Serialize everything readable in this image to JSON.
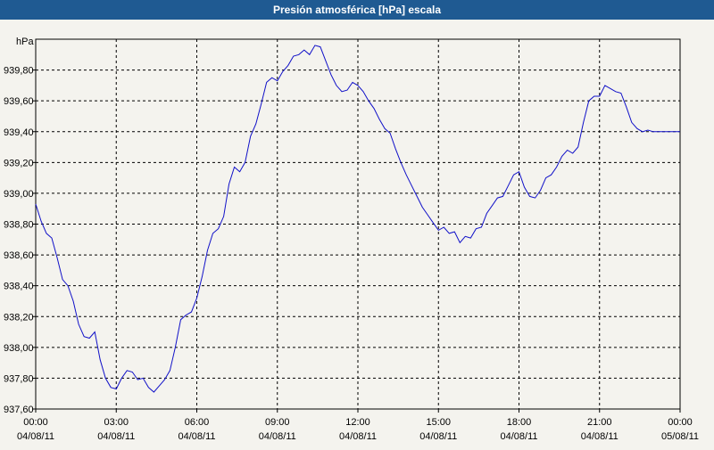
{
  "window": {
    "title": "Presión atmosférica [hPa] escala"
  },
  "chart_data": {
    "type": "line",
    "title": "Presión atmosférica [hPa] escala",
    "ylabel": "hPa",
    "xlabel": "",
    "ylim": [
      937.6,
      940.0
    ],
    "xlim": [
      0,
      24
    ],
    "grid": true,
    "line_color": "#1010c8",
    "y_ticks": [
      {
        "value": 937.6,
        "label": "937,60"
      },
      {
        "value": 937.8,
        "label": "937,80"
      },
      {
        "value": 938.0,
        "label": "938,00"
      },
      {
        "value": 938.2,
        "label": "938,20"
      },
      {
        "value": 938.4,
        "label": "938,40"
      },
      {
        "value": 938.6,
        "label": "938,60"
      },
      {
        "value": 938.8,
        "label": "938,80"
      },
      {
        "value": 939.0,
        "label": "939,00"
      },
      {
        "value": 939.2,
        "label": "939,20"
      },
      {
        "value": 939.4,
        "label": "939,40"
      },
      {
        "value": 939.6,
        "label": "939,60"
      },
      {
        "value": 939.8,
        "label": "939,80"
      }
    ],
    "x_ticks": [
      {
        "value": 0,
        "time": "00:00",
        "date": "04/08/11"
      },
      {
        "value": 3,
        "time": "03:00",
        "date": "04/08/11"
      },
      {
        "value": 6,
        "time": "06:00",
        "date": "04/08/11"
      },
      {
        "value": 9,
        "time": "09:00",
        "date": "04/08/11"
      },
      {
        "value": 12,
        "time": "12:00",
        "date": "04/08/11"
      },
      {
        "value": 15,
        "time": "15:00",
        "date": "04/08/11"
      },
      {
        "value": 18,
        "time": "18:00",
        "date": "04/08/11"
      },
      {
        "value": 21,
        "time": "21:00",
        "date": "04/08/11"
      },
      {
        "value": 24,
        "time": "00:00",
        "date": "05/08/11"
      }
    ],
    "series": [
      {
        "x": [
          0,
          0.2,
          0.4,
          0.6,
          0.8,
          1.0,
          1.2,
          1.4,
          1.6,
          1.8,
          2.0,
          2.2,
          2.4,
          2.6,
          2.8,
          3.0,
          3.2,
          3.4,
          3.6,
          3.8,
          4.0,
          4.2,
          4.4,
          4.6,
          4.8,
          5.0,
          5.2,
          5.4,
          5.6,
          5.8,
          6.0,
          6.2,
          6.4,
          6.6,
          6.8,
          7.0,
          7.2,
          7.4,
          7.6,
          7.8,
          8.0,
          8.2,
          8.4,
          8.6,
          8.8,
          9.0,
          9.2,
          9.4,
          9.6,
          9.8,
          10.0,
          10.2,
          10.4,
          10.6,
          10.8,
          11.0,
          11.2,
          11.4,
          11.6,
          11.8,
          12.0,
          12.2,
          12.4,
          12.6,
          12.8,
          13.0,
          13.2,
          13.4,
          13.6,
          13.8,
          14.0,
          14.2,
          14.4,
          14.6,
          14.8,
          15.0,
          15.2,
          15.4,
          15.6,
          15.8,
          16.0,
          16.2,
          16.4,
          16.6,
          16.8,
          17.0,
          17.2,
          17.4,
          17.6,
          17.8,
          18.0,
          18.2,
          18.4,
          18.6,
          18.8,
          19.0,
          19.2,
          19.4,
          19.6,
          19.8,
          20.0,
          20.2,
          20.4,
          20.6,
          20.8,
          21.0,
          21.2,
          21.4,
          21.6,
          21.8,
          22.0,
          22.2,
          22.4,
          22.6,
          22.8,
          23.0,
          23.2,
          23.4,
          23.6,
          23.8,
          24.0
        ],
        "values": [
          938.93,
          938.82,
          938.74,
          938.71,
          938.58,
          938.44,
          938.4,
          938.3,
          938.15,
          938.07,
          938.06,
          938.1,
          937.92,
          937.8,
          937.74,
          937.73,
          937.8,
          937.85,
          937.84,
          937.79,
          937.8,
          937.74,
          937.71,
          937.75,
          937.79,
          937.85,
          938.0,
          938.18,
          938.21,
          938.23,
          938.32,
          938.46,
          938.63,
          938.74,
          938.77,
          938.85,
          939.06,
          939.17,
          939.14,
          939.2,
          939.37,
          939.45,
          939.58,
          939.72,
          939.75,
          939.73,
          939.79,
          939.83,
          939.89,
          939.9,
          939.93,
          939.9,
          939.96,
          939.95,
          939.86,
          939.77,
          939.7,
          939.66,
          939.67,
          939.72,
          939.7,
          939.66,
          939.6,
          939.55,
          939.48,
          939.42,
          939.39,
          939.29,
          939.2,
          939.12,
          939.05,
          938.98,
          938.91,
          938.86,
          938.81,
          938.76,
          938.78,
          938.74,
          938.75,
          938.68,
          938.72,
          938.71,
          938.77,
          938.78,
          938.87,
          938.92,
          938.97,
          938.98,
          939.05,
          939.12,
          939.14,
          939.04,
          938.98,
          938.97,
          939.02,
          939.1,
          939.12,
          939.17,
          939.24,
          939.28,
          939.26,
          939.3,
          939.46,
          939.6,
          939.63,
          939.63,
          939.7,
          939.68,
          939.66,
          939.65,
          939.56,
          939.46,
          939.42,
          939.4,
          939.41,
          939.4,
          939.4,
          939.4,
          939.4,
          939.4,
          939.4
        ]
      }
    ]
  }
}
